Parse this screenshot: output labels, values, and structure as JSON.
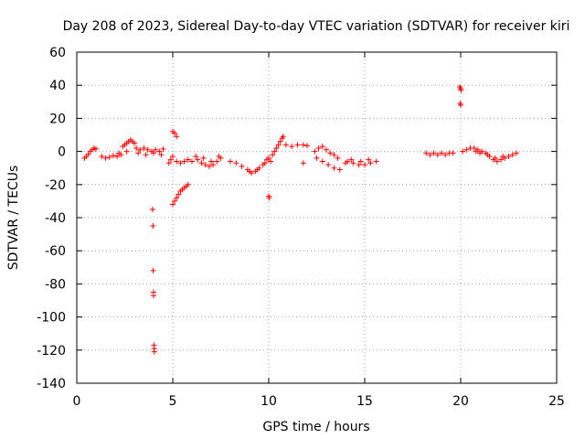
{
  "chart_data": {
    "type": "scatter",
    "title": "Day 208 of 2023, Sidereal Day-to-day VTEC variation (SDTVAR) for receiver kiri",
    "xlabel": "GPS time / hours",
    "ylabel": "SDTVAR / TECUs",
    "xlim": [
      0,
      25
    ],
    "ylim": [
      -140,
      60
    ],
    "xticks": [
      0,
      5,
      10,
      15,
      20,
      25
    ],
    "yticks": [
      -140,
      -120,
      -100,
      -80,
      -60,
      -40,
      -20,
      0,
      20,
      40,
      60
    ],
    "grid": true,
    "marker": "+",
    "color": "#ff0000",
    "series": [
      {
        "name": "SDTVAR",
        "points": [
          [
            0.4,
            -4
          ],
          [
            0.5,
            -3
          ],
          [
            0.6,
            -1.5
          ],
          [
            0.7,
            0
          ],
          [
            0.8,
            1
          ],
          [
            0.9,
            2
          ],
          [
            1.0,
            1.5
          ],
          [
            1.3,
            -3
          ],
          [
            1.5,
            -4
          ],
          [
            1.7,
            -3.5
          ],
          [
            1.9,
            -2.5
          ],
          [
            2.1,
            -3
          ],
          [
            2.3,
            -2
          ],
          [
            2.4,
            3
          ],
          [
            2.5,
            4
          ],
          [
            2.6,
            5
          ],
          [
            2.7,
            6
          ],
          [
            2.8,
            7
          ],
          [
            2.9,
            6
          ],
          [
            3.0,
            5
          ],
          [
            3.1,
            2
          ],
          [
            3.3,
            1
          ],
          [
            3.5,
            2
          ],
          [
            3.7,
            1
          ],
          [
            3.9,
            0
          ],
          [
            4.1,
            1
          ],
          [
            4.3,
            0
          ],
          [
            4.5,
            1.5
          ],
          [
            2.2,
            -1
          ],
          [
            2.6,
            0
          ],
          [
            3.2,
            -1
          ],
          [
            3.6,
            -2
          ],
          [
            4.0,
            -1
          ],
          [
            4.4,
            -2
          ],
          [
            3.95,
            -35
          ],
          [
            3.97,
            -45
          ],
          [
            3.98,
            -72
          ],
          [
            4.0,
            -85
          ],
          [
            4.0,
            -87
          ],
          [
            4.02,
            -117
          ],
          [
            4.03,
            -119
          ],
          [
            4.04,
            -121
          ],
          [
            4.8,
            -7
          ],
          [
            4.9,
            -5
          ],
          [
            5.0,
            -3
          ],
          [
            5.2,
            -6
          ],
          [
            5.4,
            -7
          ],
          [
            5.6,
            -6
          ],
          [
            5.8,
            -5
          ],
          [
            6.0,
            -6
          ],
          [
            5.0,
            12
          ],
          [
            5.1,
            11
          ],
          [
            5.2,
            9
          ],
          [
            5.0,
            -32
          ],
          [
            5.1,
            -30
          ],
          [
            5.2,
            -28
          ],
          [
            5.3,
            -26
          ],
          [
            5.4,
            -24
          ],
          [
            5.5,
            -23
          ],
          [
            5.6,
            -22
          ],
          [
            5.7,
            -21
          ],
          [
            5.8,
            -20
          ],
          [
            6.3,
            -5
          ],
          [
            6.5,
            -7
          ],
          [
            6.7,
            -8
          ],
          [
            6.9,
            -9
          ],
          [
            7.1,
            -8
          ],
          [
            7.3,
            -6
          ],
          [
            7.5,
            -4
          ],
          [
            6.2,
            -3
          ],
          [
            6.6,
            -4
          ],
          [
            7.0,
            -6
          ],
          [
            7.4,
            -3
          ],
          [
            8.0,
            -6
          ],
          [
            8.3,
            -7
          ],
          [
            8.6,
            -9
          ],
          [
            8.9,
            -11
          ],
          [
            9.1,
            -13
          ],
          [
            9.3,
            -12
          ],
          [
            9.5,
            -10
          ],
          [
            9.7,
            -8
          ],
          [
            9.9,
            -5
          ],
          [
            10.0,
            -4
          ],
          [
            10.2,
            -2
          ],
          [
            10.3,
            0
          ],
          [
            10.4,
            2
          ],
          [
            10.5,
            4
          ],
          [
            10.6,
            6
          ],
          [
            10.7,
            8
          ],
          [
            10.75,
            9
          ],
          [
            9.0,
            -12
          ],
          [
            9.4,
            -11
          ],
          [
            9.8,
            -7
          ],
          [
            10.1,
            -6
          ],
          [
            10.0,
            -27
          ],
          [
            10.02,
            -28
          ],
          [
            10.9,
            4
          ],
          [
            11.2,
            3
          ],
          [
            11.5,
            4
          ],
          [
            11.8,
            4
          ],
          [
            12.0,
            3.5
          ],
          [
            11.8,
            -7
          ],
          [
            12.4,
            0
          ],
          [
            12.6,
            2
          ],
          [
            12.8,
            3
          ],
          [
            13.0,
            1
          ],
          [
            13.2,
            -1
          ],
          [
            13.4,
            -2
          ],
          [
            13.6,
            -4
          ],
          [
            12.5,
            -4
          ],
          [
            12.8,
            -6
          ],
          [
            13.1,
            -8
          ],
          [
            13.4,
            -10
          ],
          [
            13.7,
            -11
          ],
          [
            14.0,
            -7
          ],
          [
            14.1,
            -6
          ],
          [
            14.4,
            -7
          ],
          [
            14.7,
            -8
          ],
          [
            15.0,
            -8
          ],
          [
            15.3,
            -7
          ],
          [
            15.6,
            -6
          ],
          [
            14.3,
            -5
          ],
          [
            14.8,
            -6
          ],
          [
            15.2,
            -5
          ],
          [
            18.2,
            -1
          ],
          [
            18.4,
            -2
          ],
          [
            18.6,
            -1
          ],
          [
            18.8,
            -2
          ],
          [
            19.0,
            -1
          ],
          [
            19.2,
            -2
          ],
          [
            19.4,
            -1
          ],
          [
            19.6,
            -1
          ],
          [
            19.95,
            39
          ],
          [
            20.0,
            38
          ],
          [
            20.02,
            37
          ],
          [
            19.97,
            29
          ],
          [
            20.0,
            28
          ],
          [
            20.1,
            0
          ],
          [
            20.3,
            1
          ],
          [
            20.5,
            2
          ],
          [
            20.7,
            2
          ],
          [
            20.9,
            1
          ],
          [
            21.1,
            0
          ],
          [
            21.3,
            -1
          ],
          [
            21.5,
            -3
          ],
          [
            21.7,
            -5
          ],
          [
            21.9,
            -6
          ],
          [
            22.1,
            -5
          ],
          [
            22.3,
            -4
          ],
          [
            22.5,
            -3
          ],
          [
            22.7,
            -2
          ],
          [
            22.9,
            -1
          ],
          [
            20.8,
            0
          ],
          [
            21.0,
            -1
          ],
          [
            21.4,
            -2
          ],
          [
            21.8,
            -4
          ],
          [
            22.2,
            -3
          ]
        ]
      }
    ]
  }
}
